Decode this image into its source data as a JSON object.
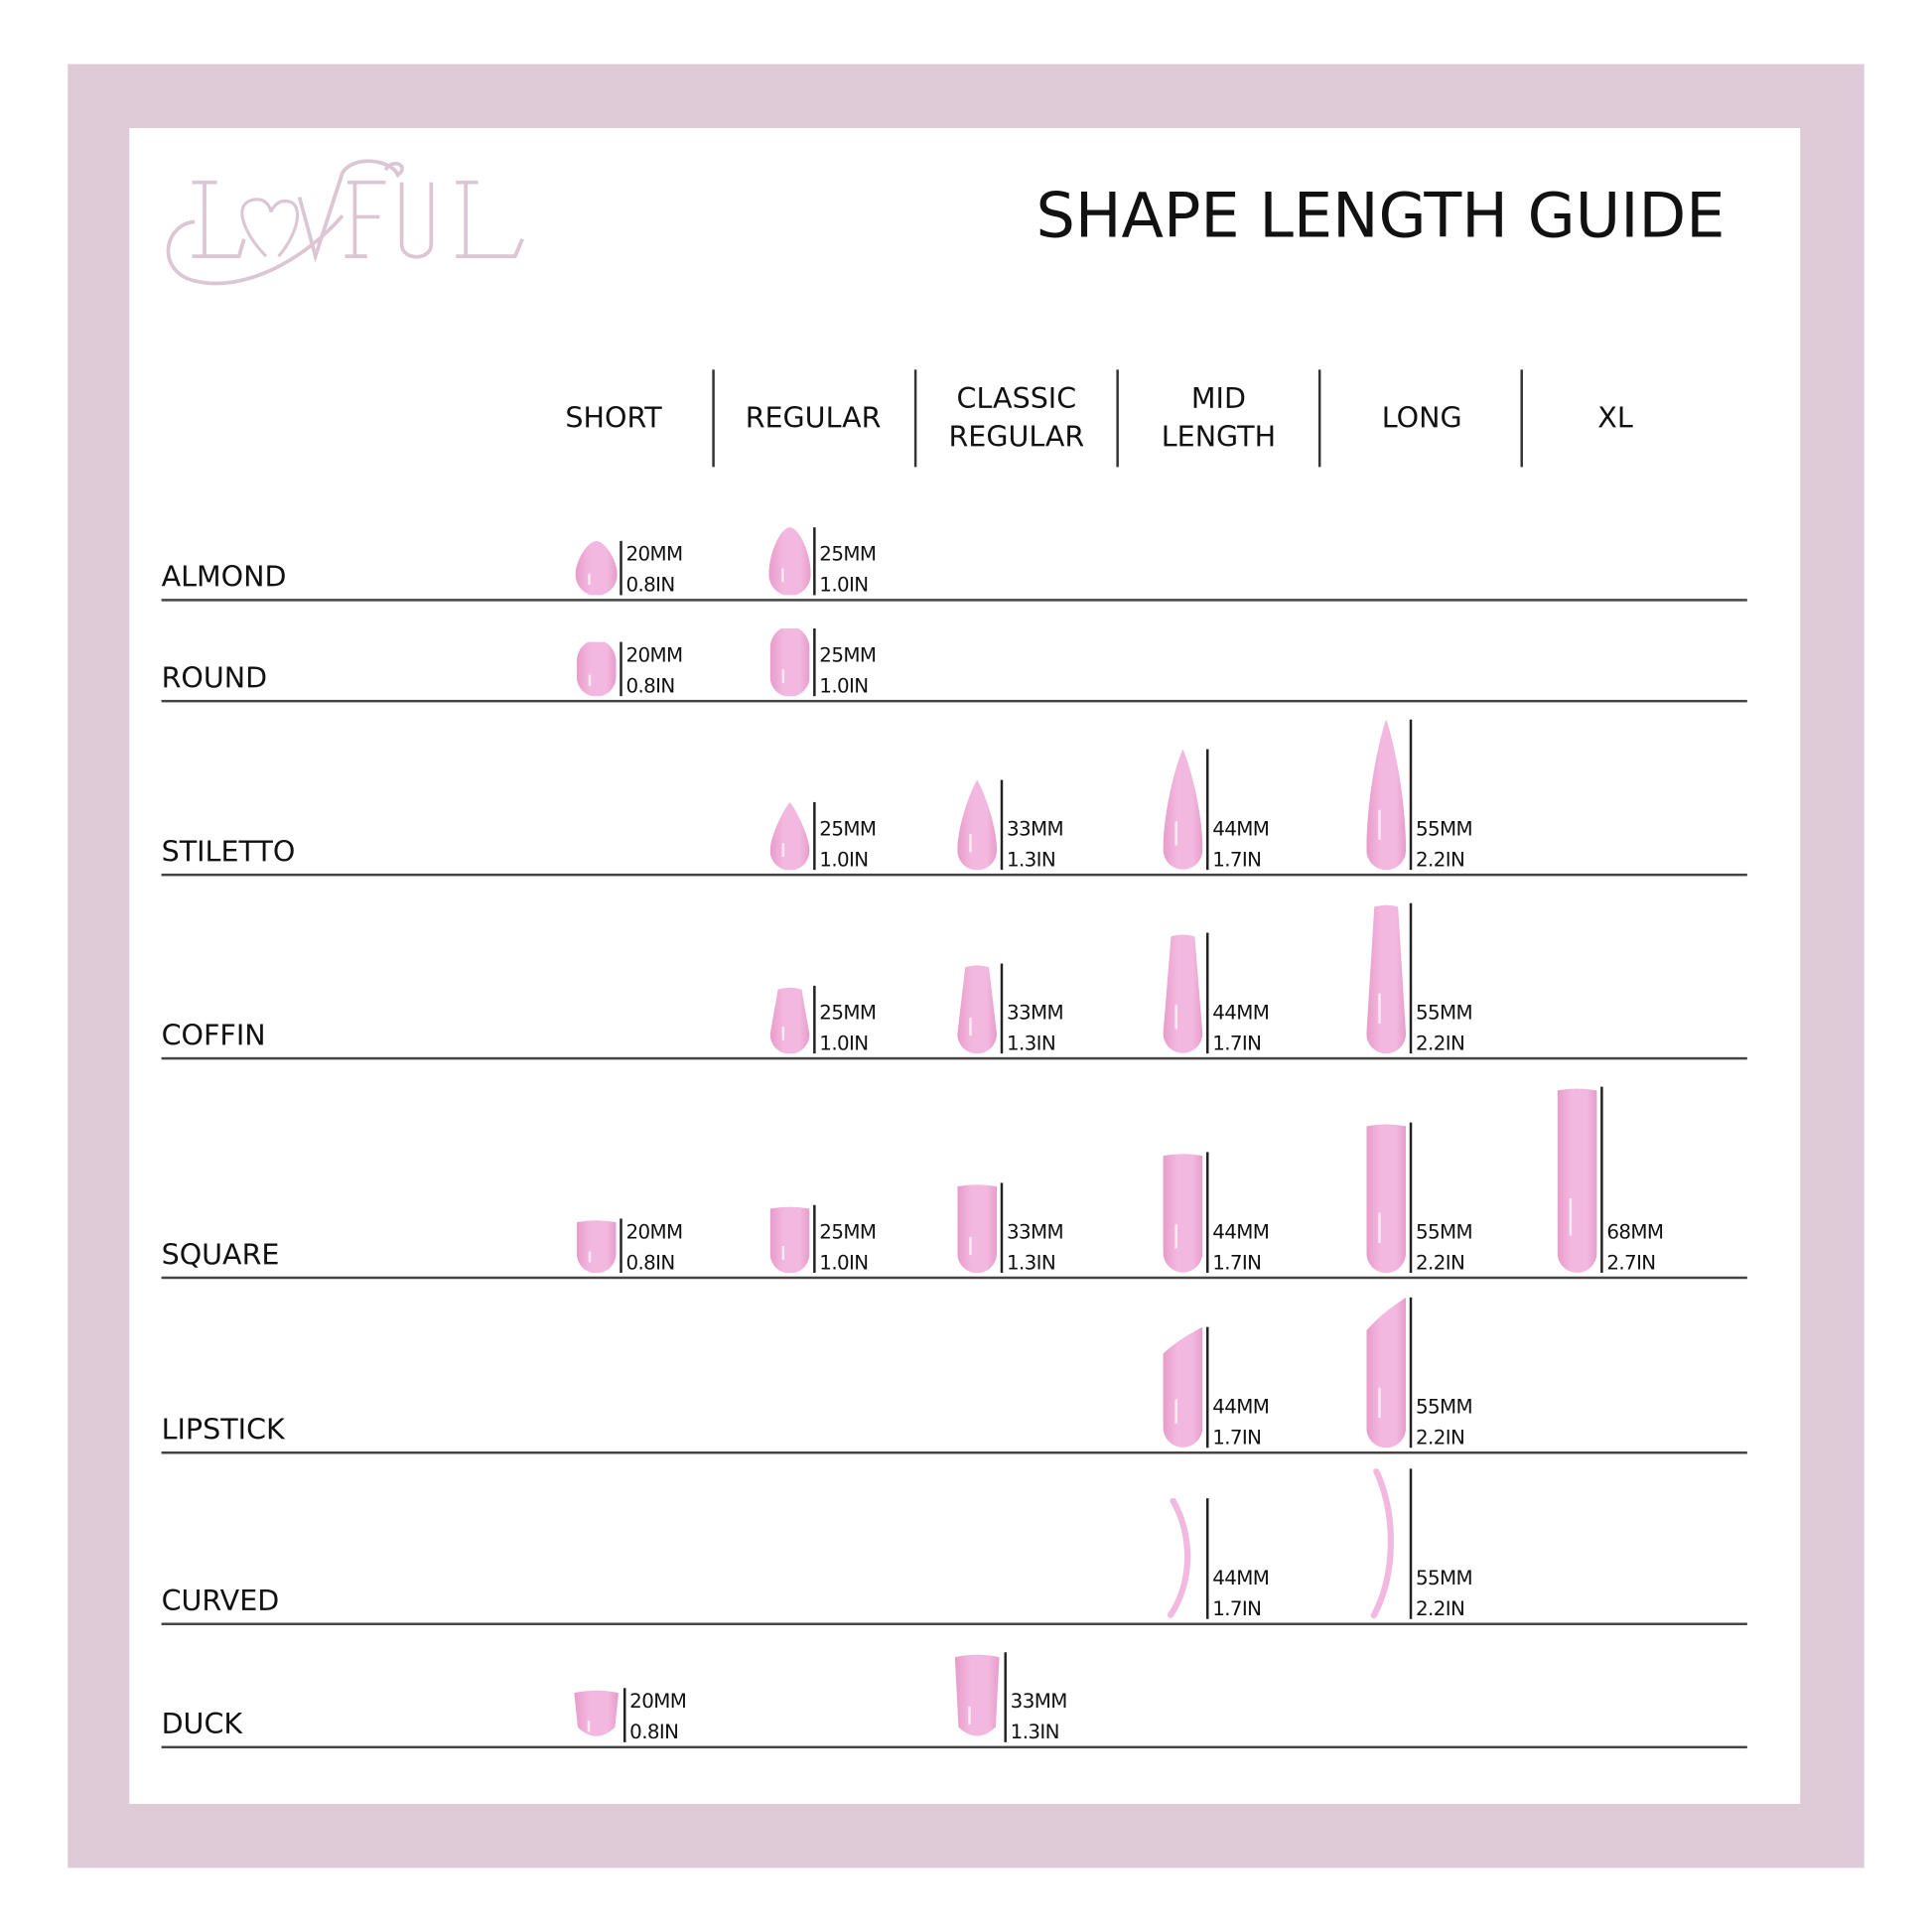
{
  "brand": {
    "logo_text": "LOVFUL",
    "logo_color": "#dcc6d4"
  },
  "title": "SHAPE LENGTH GUIDE",
  "colors": {
    "frame": "#dfcbd8",
    "nail": "#f3b8df",
    "nail_shade": "#e79cc9",
    "text": "#111111"
  },
  "columns": [
    {
      "key": "short",
      "label": "SHORT"
    },
    {
      "key": "regular",
      "label": "REGULAR"
    },
    {
      "key": "classic_regular",
      "label": "CLASSIC\nREGULAR"
    },
    {
      "key": "mid_length",
      "label": "MID\nLENGTH"
    },
    {
      "key": "long",
      "label": "LONG"
    },
    {
      "key": "xl",
      "label": "XL"
    }
  ],
  "rows": [
    {
      "shape": "almond",
      "label": "ALMOND",
      "entries": [
        {
          "col": "short",
          "mm": "20MM",
          "in": "0.8IN",
          "length_mm": 20
        },
        {
          "col": "regular",
          "mm": "25MM",
          "in": "1.0IN",
          "length_mm": 25
        }
      ]
    },
    {
      "shape": "round",
      "label": "ROUND",
      "entries": [
        {
          "col": "short",
          "mm": "20MM",
          "in": "0.8IN",
          "length_mm": 20
        },
        {
          "col": "regular",
          "mm": "25MM",
          "in": "1.0IN",
          "length_mm": 25
        }
      ]
    },
    {
      "shape": "stiletto",
      "label": "STILETTO",
      "entries": [
        {
          "col": "regular",
          "mm": "25MM",
          "in": "1.0IN",
          "length_mm": 25
        },
        {
          "col": "classic_regular",
          "mm": "33MM",
          "in": "1.3IN",
          "length_mm": 33
        },
        {
          "col": "mid_length",
          "mm": "44MM",
          "in": "1.7IN",
          "length_mm": 44
        },
        {
          "col": "long",
          "mm": "55MM",
          "in": "2.2IN",
          "length_mm": 55
        }
      ]
    },
    {
      "shape": "coffin",
      "label": "COFFIN",
      "entries": [
        {
          "col": "regular",
          "mm": "25MM",
          "in": "1.0IN",
          "length_mm": 25
        },
        {
          "col": "classic_regular",
          "mm": "33MM",
          "in": "1.3IN",
          "length_mm": 33
        },
        {
          "col": "mid_length",
          "mm": "44MM",
          "in": "1.7IN",
          "length_mm": 44
        },
        {
          "col": "long",
          "mm": "55MM",
          "in": "2.2IN",
          "length_mm": 55
        }
      ]
    },
    {
      "shape": "square",
      "label": "SQUARE",
      "entries": [
        {
          "col": "short",
          "mm": "20MM",
          "in": "0.8IN",
          "length_mm": 20
        },
        {
          "col": "regular",
          "mm": "25MM",
          "in": "1.0IN",
          "length_mm": 25
        },
        {
          "col": "classic_regular",
          "mm": "33MM",
          "in": "1.3IN",
          "length_mm": 33
        },
        {
          "col": "mid_length",
          "mm": "44MM",
          "in": "1.7IN",
          "length_mm": 44
        },
        {
          "col": "long",
          "mm": "55MM",
          "in": "2.2IN",
          "length_mm": 55
        },
        {
          "col": "xl",
          "mm": "68MM",
          "in": "2.7IN",
          "length_mm": 68
        }
      ]
    },
    {
      "shape": "lipstick",
      "label": "LIPSTICK",
      "entries": [
        {
          "col": "mid_length",
          "mm": "44MM",
          "in": "1.7IN",
          "length_mm": 44
        },
        {
          "col": "long",
          "mm": "55MM",
          "in": "2.2IN",
          "length_mm": 55
        }
      ]
    },
    {
      "shape": "curved",
      "label": "CURVED",
      "entries": [
        {
          "col": "mid_length",
          "mm": "44MM",
          "in": "1.7IN",
          "length_mm": 44
        },
        {
          "col": "long",
          "mm": "55MM",
          "in": "2.2IN",
          "length_mm": 55
        }
      ]
    },
    {
      "shape": "duck",
      "label": "DUCK",
      "entries": [
        {
          "col": "short",
          "mm": "20MM",
          "in": "0.8IN",
          "length_mm": 20
        },
        {
          "col": "classic_regular",
          "mm": "33MM",
          "in": "1.3IN",
          "length_mm": 33
        }
      ]
    }
  ]
}
